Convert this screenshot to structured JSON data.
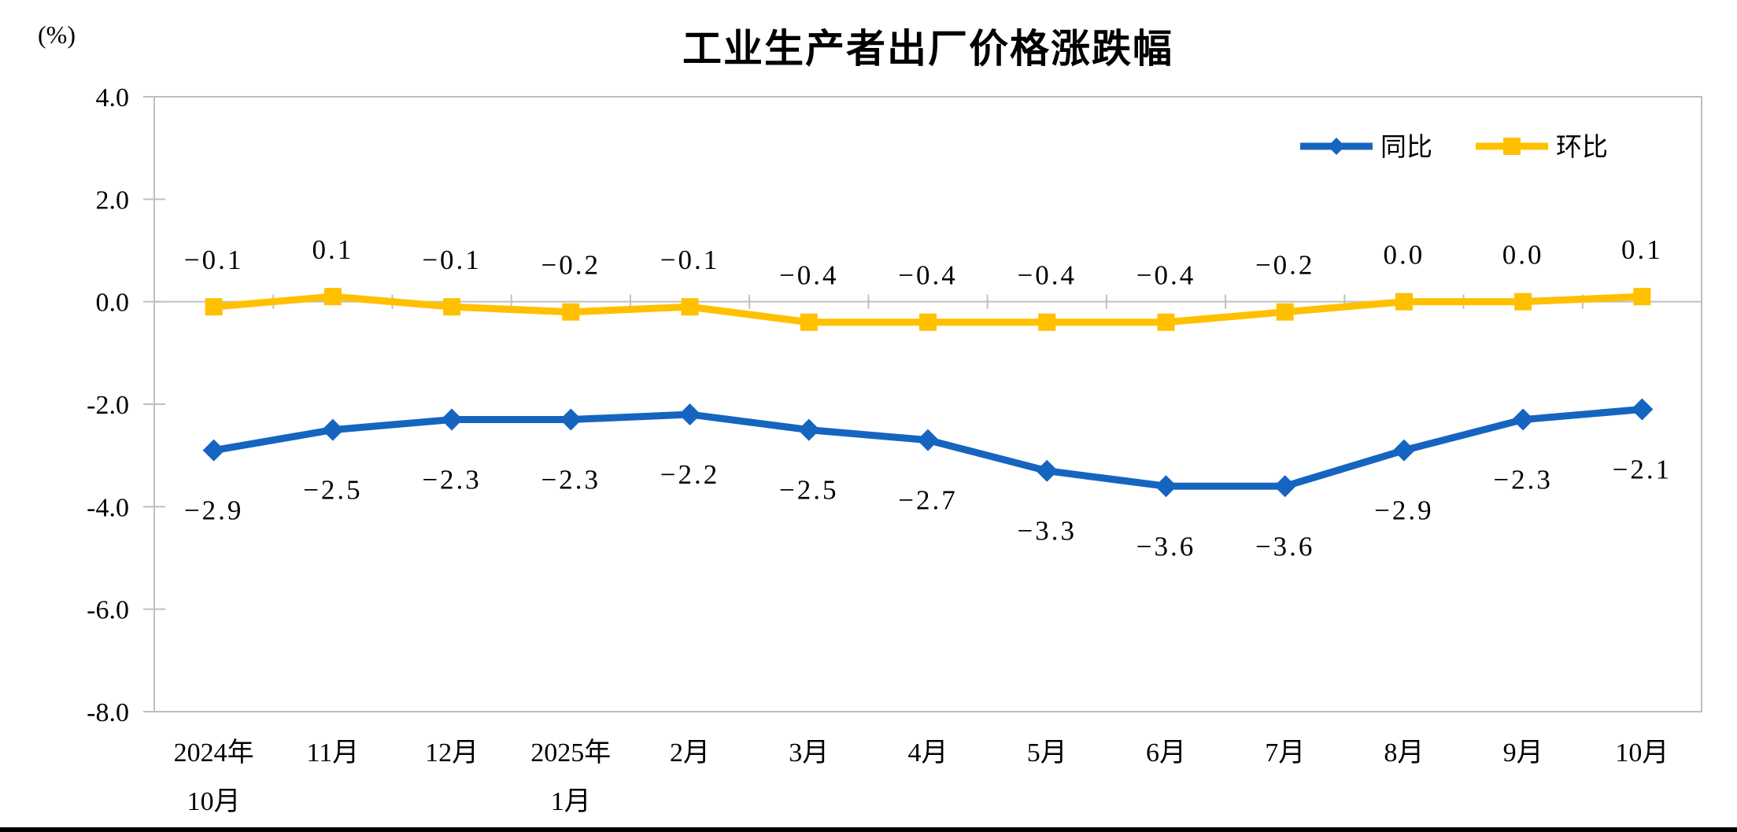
{
  "page": {
    "background": "#FFFFFF",
    "bottom_bar_color": "#000000"
  },
  "colors": {
    "axis": "#BFBFBF",
    "text": "#000000",
    "series_yoy": "#1565C0",
    "series_mom": "#FFC000"
  },
  "chart_data": {
    "type": "line",
    "title": "工业生产者出厂价格涨跌幅",
    "unit_label": "(%)",
    "legend_position": "top-right",
    "grid": "zero-line-only",
    "categories": [
      [
        "2024年",
        "10月"
      ],
      [
        "11月"
      ],
      [
        "12月"
      ],
      [
        "2025年",
        "1月"
      ],
      [
        "2月"
      ],
      [
        "3月"
      ],
      [
        "4月"
      ],
      [
        "5月"
      ],
      [
        "6月"
      ],
      [
        "7月"
      ],
      [
        "8月"
      ],
      [
        "9月"
      ],
      [
        "10月"
      ]
    ],
    "series": [
      {
        "id": "yoy",
        "name": "同比",
        "color": "#1565C0",
        "marker": "diamond",
        "label_position": "below",
        "values": [
          -2.9,
          -2.5,
          -2.3,
          -2.3,
          -2.2,
          -2.5,
          -2.7,
          -3.3,
          -3.6,
          -3.6,
          -2.9,
          -2.3,
          -2.1
        ],
        "labels": [
          "-2.9",
          "-2.5",
          "-2.3",
          "-2.3",
          "-2.2",
          "-2.5",
          "-2.7",
          "-3.3",
          "-3.6",
          "-3.6",
          "-2.9",
          "-2.3",
          "-2.1"
        ]
      },
      {
        "id": "mom",
        "name": "环比",
        "color": "#FFC000",
        "marker": "square",
        "label_position": "above",
        "values": [
          -0.1,
          0.1,
          -0.1,
          -0.2,
          -0.1,
          -0.4,
          -0.4,
          -0.4,
          -0.4,
          -0.2,
          0.0,
          0.0,
          0.1
        ],
        "labels": [
          "-0.1",
          "0.1",
          "-0.1",
          "-0.2",
          "-0.1",
          "-0.4",
          "-0.4",
          "-0.4",
          "-0.4",
          "-0.2",
          "0.0",
          "0.0",
          "0.1"
        ]
      }
    ],
    "y_axis": {
      "min": -8,
      "max": 4,
      "step": 2,
      "tick_labels": [
        "4.0",
        "2.0",
        "0.0",
        "-2.0",
        "-4.0",
        "-6.0",
        "-8.0"
      ]
    }
  }
}
